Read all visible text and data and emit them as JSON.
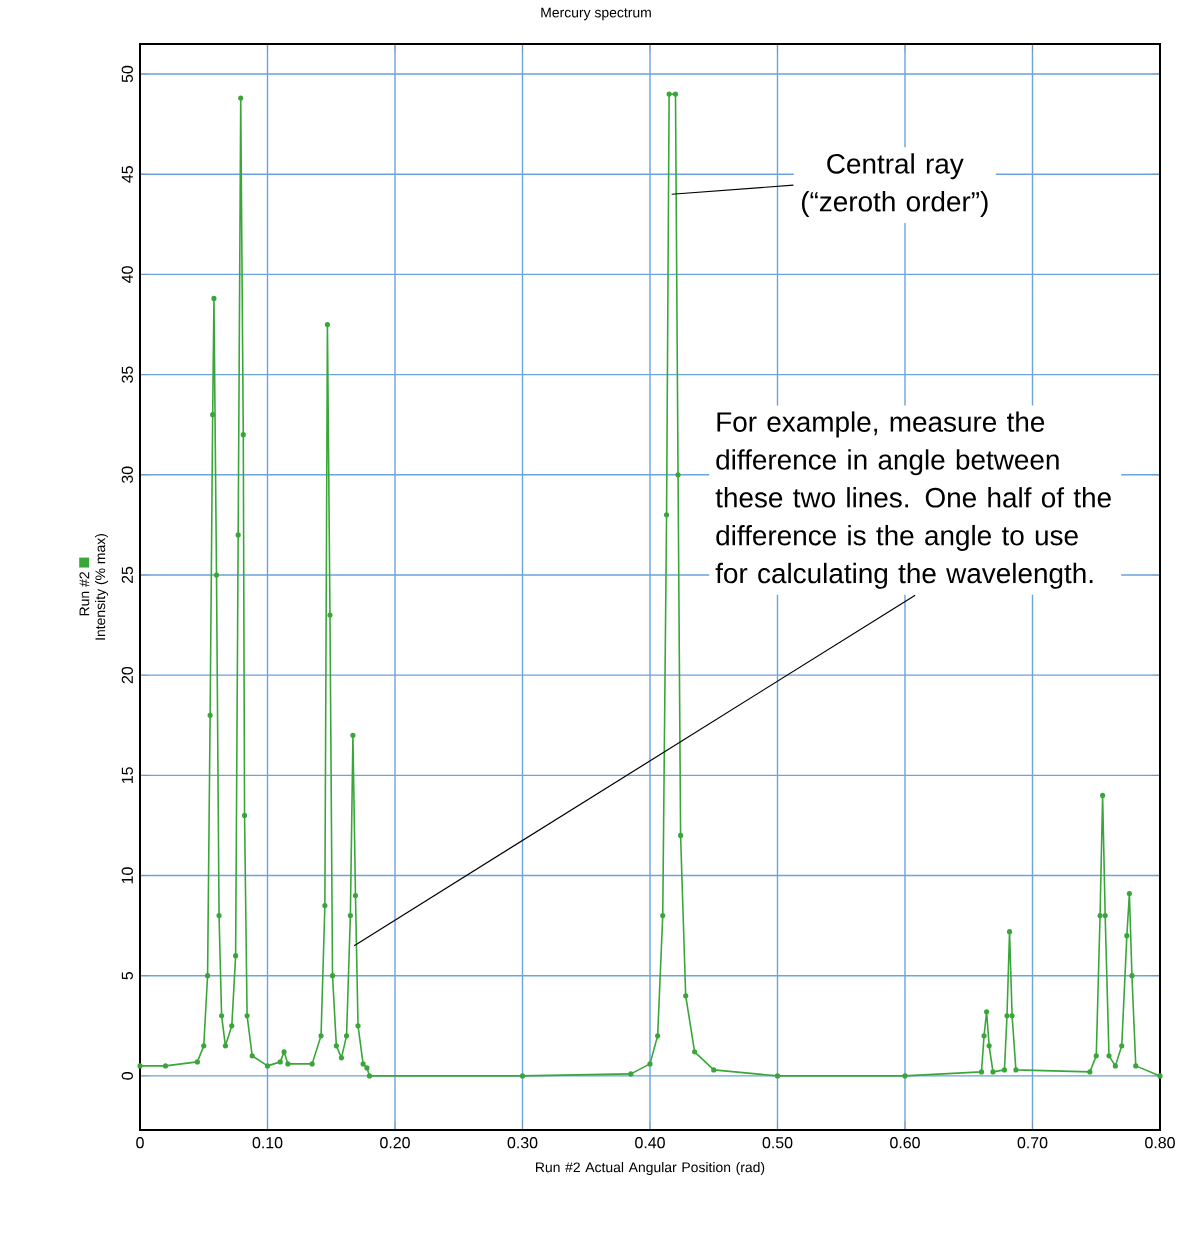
{
  "chart_data": {
    "type": "line",
    "title": "Mercury spectrum",
    "xlabel": "Run #2 Actual Angular Position (rad)",
    "ylabel": "Intensity (% max)",
    "xlim": [
      0,
      0.8
    ],
    "ylim": [
      -2.7,
      51.5
    ],
    "xticks": [
      0,
      {
        "value": 0.1,
        "label": "0.10"
      },
      {
        "value": 0.2,
        "label": "0.20"
      },
      {
        "value": 0.3,
        "label": "0.30"
      },
      {
        "value": 0.4,
        "label": "0.40"
      },
      {
        "value": 0.5,
        "label": "0.50"
      },
      {
        "value": 0.6,
        "label": "0.60"
      },
      {
        "value": 0.7,
        "label": "0.70"
      },
      {
        "value": 0.8,
        "label": "0.80"
      }
    ],
    "yticks": [
      0,
      5,
      10,
      15,
      20,
      25,
      30,
      35,
      40,
      45,
      50
    ],
    "grid": true,
    "marker": "circle",
    "line_style": "solid",
    "series": [
      {
        "name": "Run #2",
        "color": "#3aa63a",
        "x": [
          0,
          0.02,
          0.045,
          0.05,
          0.053,
          0.055,
          0.057,
          0.058,
          0.06,
          0.062,
          0.064,
          0.067,
          0.072,
          0.075,
          0.077,
          0.079,
          0.081,
          0.082,
          0.084,
          0.088,
          0.1,
          0.11,
          0.113,
          0.116,
          0.135,
          0.142,
          0.145,
          0.147,
          0.149,
          0.151,
          0.154,
          0.158,
          0.162,
          0.165,
          0.167,
          0.169,
          0.171,
          0.175,
          0.178,
          0.18,
          0.3,
          0.385,
          0.4,
          0.406,
          0.41,
          0.413,
          0.415,
          0.42,
          0.422,
          0.424,
          0.428,
          0.435,
          0.45,
          0.5,
          0.6,
          0.66,
          0.662,
          0.664,
          0.666,
          0.669,
          0.678,
          0.68,
          0.682,
          0.684,
          0.687,
          0.745,
          0.75,
          0.753,
          0.755,
          0.757,
          0.76,
          0.765,
          0.77,
          0.774,
          0.776,
          0.778,
          0.781,
          0.8
        ],
        "values": [
          0.5,
          0.5,
          0.7,
          1.5,
          5,
          18,
          33,
          38.8,
          25,
          8,
          3,
          1.5,
          2.5,
          6,
          27,
          48.8,
          32,
          13,
          3,
          1,
          0.5,
          0.7,
          1.2,
          0.6,
          0.6,
          2,
          8.5,
          37.5,
          23,
          5,
          1.5,
          0.9,
          2,
          8,
          17,
          9,
          2.5,
          0.6,
          0.4,
          0,
          0,
          0.1,
          0.6,
          2,
          8,
          28,
          49,
          49,
          30,
          12,
          4,
          1.2,
          0.3,
          0,
          0,
          0.2,
          2,
          3.2,
          1.5,
          0.2,
          0.3,
          3,
          7.2,
          3,
          0.3,
          0.2,
          1,
          8,
          14,
          8,
          1,
          0.5,
          1.5,
          7,
          9.1,
          5,
          0.5,
          0
        ]
      }
    ],
    "annotations": [
      {
        "text": "Central ray (“zeroth order”)",
        "x": 0.417,
        "y": 44
      },
      {
        "text": "For example, measure the difference in angle between these two lines. One half of the difference is the angle to use for calculating the wavelength.",
        "x": 0.168,
        "y": 6.5
      }
    ]
  }
}
